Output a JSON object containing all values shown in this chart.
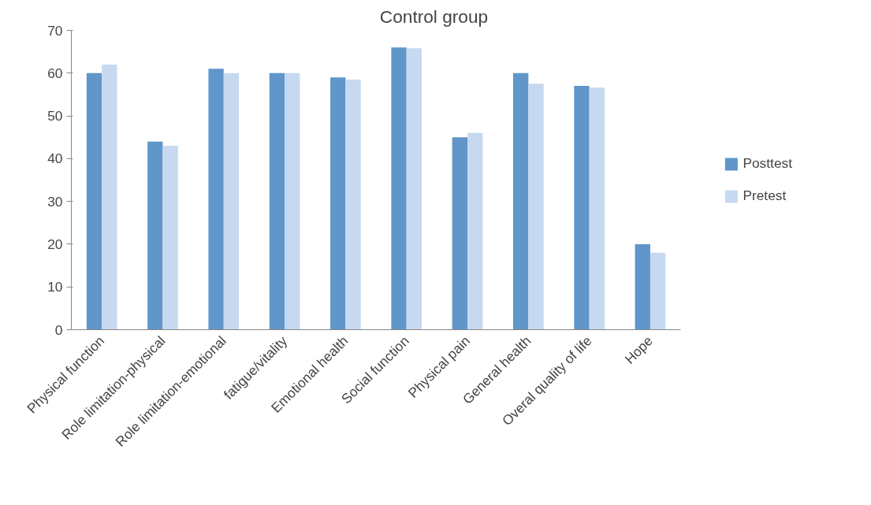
{
  "chart_data": {
    "type": "bar",
    "title": "Control group",
    "categories": [
      "Physical function",
      "Role limitation-physical",
      "Role limitation-emotional",
      "fatigue/vitality",
      "Emotional health",
      "Social function",
      "Physical pain",
      "General health",
      "Overal quality of life",
      "Hope"
    ],
    "series": [
      {
        "name": "Posttest",
        "color": "#6096c9",
        "values": [
          60,
          44,
          61,
          60,
          59,
          66,
          45,
          60,
          57,
          20
        ]
      },
      {
        "name": "Pretest",
        "color": "#c6d9f0",
        "values": [
          62,
          43,
          60,
          60,
          58.5,
          65.8,
          46,
          57.5,
          56.6,
          18
        ]
      }
    ],
    "ylim": [
      0,
      70
    ],
    "yticks": [
      0,
      10,
      20,
      30,
      40,
      50,
      60,
      70
    ],
    "grid": false,
    "legend": "right"
  }
}
